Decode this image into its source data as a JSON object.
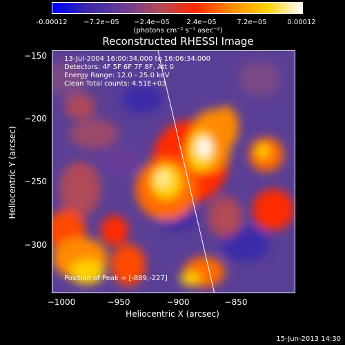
{
  "colorbar": {
    "ticks": [
      "-0.00012",
      "−7.2e−05",
      "−2.4e−05",
      "2.4e−05",
      "7.2e−05",
      "0.00012"
    ],
    "units": "(photons cm⁻² s⁻¹ asec⁻²)",
    "colors": [
      "#0000ff",
      "#3a2aa8",
      "#6a3b98",
      "#b04a58",
      "#ff2a00",
      "#ff8a00",
      "#ffd000",
      "#ffffff"
    ]
  },
  "title": "Reconstructed RHESSI Image",
  "info": {
    "line1": "13-Jul-2004 16:00:34.000 to 16:06:34.000",
    "line2": "Detectors: 4F 5F 6F 7F 8F, Att 0",
    "line3": "Energy Range: 12.0 - 25.0 keV",
    "line4": "Clean     Total counts: 4.51E+03"
  },
  "peak": "Position of Peak = [-889,-227]",
  "axes": {
    "xlabel": "Heliocentric X (arcsec)",
    "ylabel": "Heliocentric Y (arcsec)",
    "xticks": [
      "−1000",
      "−950",
      "−900",
      "−850"
    ],
    "yticks": [
      "−150",
      "−200",
      "−250",
      "−300"
    ]
  },
  "datestamp": "15-Jun-2013 14:30"
}
